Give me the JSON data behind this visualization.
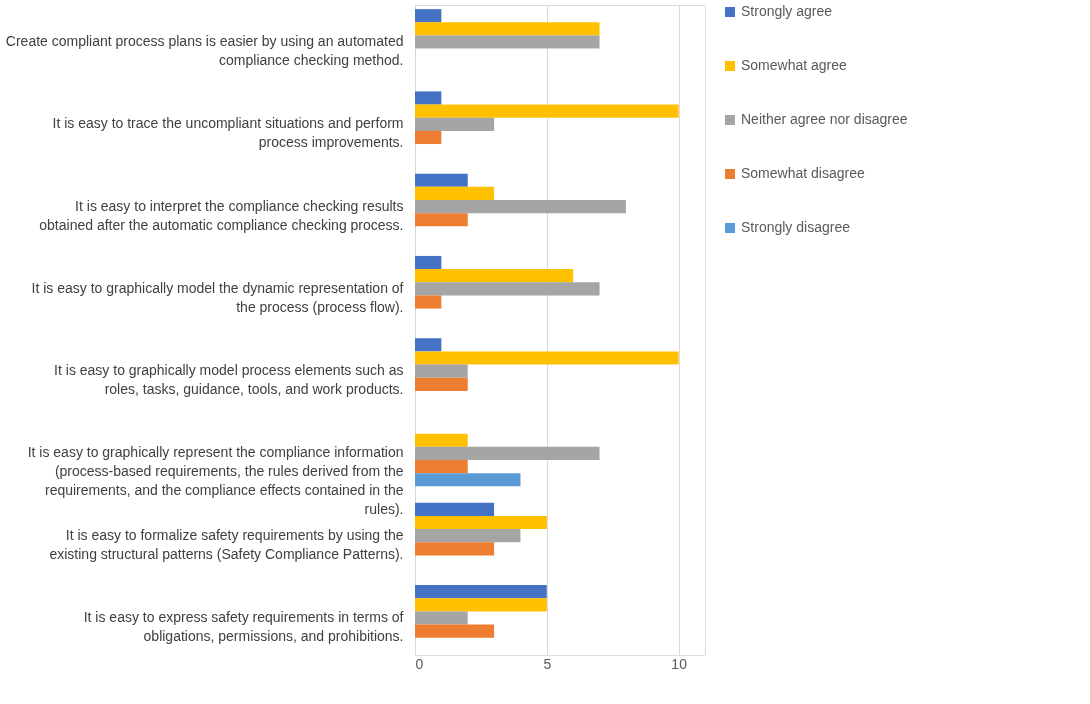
{
  "chart_data": {
    "type": "bar",
    "orientation": "horizontal",
    "categories": [
      "Create compliant process plans is easier by using an automated compliance checking method.",
      "It is easy to trace the uncompliant situations and perform process improvements.",
      "It is easy to interpret the compliance checking results obtained after the automatic compliance checking process.",
      "It is easy to graphically model the dynamic representation of the process (process flow).",
      "It is easy to graphically model process elements such as roles, tasks, guidance, tools, and work products.",
      "It is easy to graphically represent the compliance information (process-based requirements, the rules derived from the requirements, and the compliance effects contained in the rules).",
      "It is easy to formalize safety requirements by using the existing structural patterns (Safety Compliance Patterns).",
      "It is easy to express safety requirements in terms of obligations, permissions, and prohibitions."
    ],
    "series": [
      {
        "name": "Strongly agree",
        "color": "#4472c4",
        "values": [
          1,
          1,
          2,
          1,
          1,
          0,
          3,
          5
        ]
      },
      {
        "name": "Somewhat agree",
        "color": "#ffc000",
        "values": [
          7,
          10,
          3,
          6,
          10,
          2,
          5,
          5
        ]
      },
      {
        "name": "Neither agree nor disagree",
        "color": "#a5a5a5",
        "values": [
          7,
          3,
          8,
          7,
          2,
          7,
          4,
          2
        ]
      },
      {
        "name": "Somewhat disagree",
        "color": "#ed7d31",
        "values": [
          0,
          1,
          2,
          1,
          2,
          2,
          3,
          3
        ]
      },
      {
        "name": "Strongly disagree",
        "color": "#5b9bd5",
        "values": [
          0,
          0,
          0,
          0,
          0,
          4,
          0,
          0
        ]
      }
    ],
    "xlim": [
      0,
      11
    ],
    "xticks": [
      0,
      5,
      10
    ],
    "grid": "x",
    "legend": "right"
  }
}
